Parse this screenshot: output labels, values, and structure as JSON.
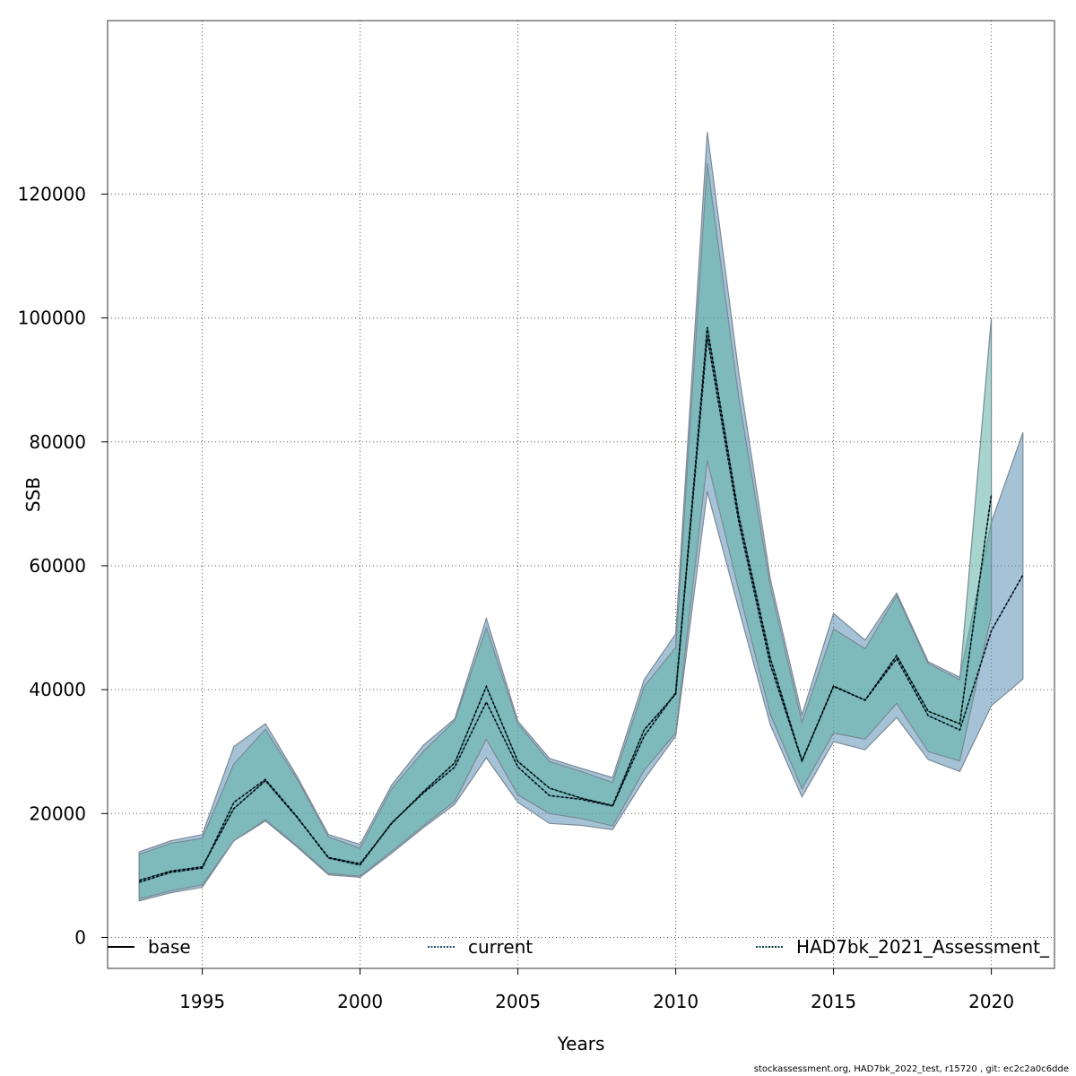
{
  "chart_data": {
    "type": "line",
    "title": "",
    "xlabel": "Years",
    "ylabel": "SSB",
    "xlim": [
      1992,
      2022
    ],
    "ylim": [
      -5000,
      148000
    ],
    "grid": true,
    "legend_position": "bottom",
    "x_ticks": [
      1995,
      2000,
      2005,
      2010,
      2015,
      2020
    ],
    "y_ticks": [
      0,
      20000,
      40000,
      60000,
      80000,
      100000,
      120000
    ],
    "x_tick_labels": [
      "1995",
      "2000",
      "2005",
      "2010",
      "2015",
      "2020"
    ],
    "y_tick_labels": [
      "0",
      "20000",
      "40000",
      "60000",
      "80000",
      "100000",
      "120000"
    ],
    "legend": [
      {
        "label": "base",
        "style": "solid",
        "color": "#000000"
      },
      {
        "label": "current",
        "style": "dotted",
        "color": "#1f4e79"
      },
      {
        "label": "HAD7bk_2021_Assessment_",
        "style": "dotted",
        "color": "#003b3b"
      }
    ],
    "series": [
      {
        "name": "current",
        "color": "#5b8fb5",
        "x": [
          1993,
          1994,
          1995,
          1996,
          1997,
          1998,
          1999,
          2000,
          2001,
          2002,
          2003,
          2004,
          2005,
          2006,
          2007,
          2008,
          2009,
          2010,
          2011,
          2012,
          2013,
          2014,
          2015,
          2016,
          2017,
          2018,
          2019,
          2020,
          2021
        ],
        "values": [
          8900,
          10500,
          11200,
          21800,
          25500,
          19500,
          12800,
          11700,
          18500,
          23300,
          27500,
          38000,
          27500,
          22900,
          22300,
          21200,
          32500,
          39500,
          97000,
          67000,
          44000,
          28500,
          40500,
          38300,
          45000,
          35800,
          33500,
          49500,
          58500
        ],
        "lower": [
          5900,
          7200,
          8100,
          15600,
          18800,
          14600,
          10100,
          9700,
          13600,
          17700,
          21500,
          29000,
          21800,
          18400,
          18100,
          17400,
          25500,
          32500,
          72000,
          53000,
          34300,
          22700,
          31600,
          30300,
          35500,
          28700,
          26800,
          37400,
          41700
        ],
        "upper": [
          13800,
          15600,
          16600,
          30800,
          34500,
          26000,
          16600,
          15000,
          24600,
          31000,
          35300,
          51500,
          34900,
          28900,
          27300,
          25800,
          41600,
          49000,
          130000,
          91000,
          57800,
          35900,
          52300,
          48000,
          55600,
          44500,
          42000,
          67000,
          81500
        ]
      },
      {
        "name": "HAD7bk_2021_Assessment_",
        "color": "#5fb3a5",
        "x": [
          1993,
          1994,
          1995,
          1996,
          1997,
          1998,
          1999,
          2000,
          2001,
          2002,
          2003,
          2004,
          2005,
          2006,
          2007,
          2008,
          2009,
          2010,
          2011,
          2012,
          2013,
          2014,
          2015,
          2016,
          2017,
          2018,
          2019,
          2020
        ],
        "values": [
          9200,
          10700,
          11400,
          20800,
          25300,
          19400,
          12900,
          11900,
          18400,
          23500,
          28200,
          40500,
          28400,
          24100,
          22500,
          21300,
          33500,
          39300,
          98500,
          68000,
          45000,
          28500,
          40600,
          38300,
          45500,
          36500,
          34500,
          71500
        ],
        "lower": [
          6200,
          7500,
          8500,
          15600,
          19000,
          14800,
          10300,
          9900,
          13900,
          18000,
          22000,
          32000,
          23000,
          20000,
          19200,
          18000,
          27000,
          33000,
          77000,
          56000,
          36000,
          24000,
          33000,
          32000,
          37800,
          30000,
          28500,
          52000
        ],
        "upper": [
          13400,
          15200,
          16000,
          28000,
          33600,
          25600,
          16200,
          14400,
          24000,
          30000,
          35000,
          50000,
          34500,
          28400,
          26800,
          25000,
          40500,
          46800,
          125000,
          87000,
          56600,
          34700,
          49800,
          46600,
          55200,
          44200,
          41600,
          100000
        ]
      }
    ]
  },
  "footer_text": "stockassessment.org, HAD7bk_2022_test, r15720 , git: ec2c2a0c6dde"
}
